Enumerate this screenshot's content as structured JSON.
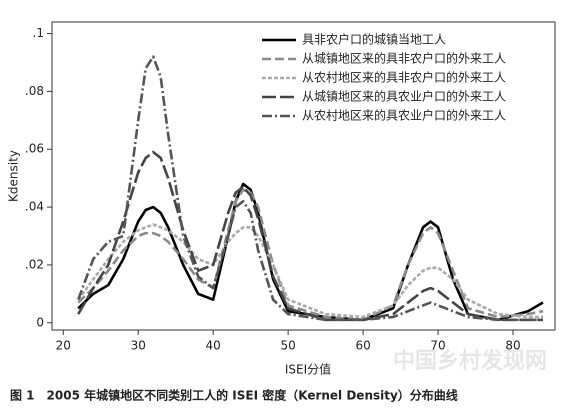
{
  "chart_data": {
    "type": "line",
    "caption": "图 1　2005 年城镇地区不同类别工人的 ISEI 密度（Kernel Density）分布曲线",
    "watermark": "中国乡村发现网",
    "xlabel": "ISEI分值",
    "ylabel": "Kdensity",
    "x": [
      22,
      24,
      26,
      28,
      30,
      31,
      32,
      33,
      34,
      36,
      38,
      40,
      42,
      43,
      44,
      45,
      46,
      48,
      50,
      55,
      60,
      64,
      66,
      68,
      69,
      70,
      72,
      74,
      78,
      82,
      84
    ],
    "series": [
      {
        "name": "具非农户口的城镇当地工人",
        "color": "#000000",
        "dash": "none",
        "values": [
          0.005,
          0.01,
          0.013,
          0.022,
          0.035,
          0.039,
          0.04,
          0.038,
          0.033,
          0.02,
          0.01,
          0.008,
          0.03,
          0.042,
          0.048,
          0.046,
          0.038,
          0.015,
          0.004,
          0.002,
          0.001,
          0.005,
          0.02,
          0.033,
          0.035,
          0.033,
          0.015,
          0.003,
          0.001,
          0.004,
          0.007
        ]
      },
      {
        "name": "从城镇地区来的具非农户口的外来工人",
        "color": "#8a8a8a",
        "dash": "9 4",
        "values": [
          0.007,
          0.012,
          0.018,
          0.025,
          0.03,
          0.031,
          0.031,
          0.03,
          0.028,
          0.022,
          0.015,
          0.012,
          0.032,
          0.042,
          0.046,
          0.045,
          0.04,
          0.02,
          0.006,
          0.002,
          0.001,
          0.006,
          0.02,
          0.031,
          0.033,
          0.031,
          0.018,
          0.005,
          0.002,
          0.003,
          0.004
        ]
      },
      {
        "name": "从农村地区来的具非农户口的外来工人",
        "color": "#aaaaaa",
        "dash": "4 2",
        "values": [
          0.008,
          0.015,
          0.022,
          0.028,
          0.032,
          0.033,
          0.034,
          0.033,
          0.032,
          0.028,
          0.022,
          0.02,
          0.028,
          0.031,
          0.033,
          0.033,
          0.03,
          0.02,
          0.008,
          0.003,
          0.002,
          0.006,
          0.013,
          0.018,
          0.019,
          0.019,
          0.015,
          0.008,
          0.003,
          0.002,
          0.002
        ]
      },
      {
        "name": "从城镇地区来的具农业户口的外来工人",
        "color": "#444444",
        "dash": "14 4",
        "values": [
          0.003,
          0.012,
          0.02,
          0.035,
          0.052,
          0.057,
          0.059,
          0.057,
          0.05,
          0.032,
          0.018,
          0.02,
          0.038,
          0.045,
          0.047,
          0.044,
          0.036,
          0.016,
          0.005,
          0.001,
          0.001,
          0.003,
          0.007,
          0.011,
          0.012,
          0.011,
          0.007,
          0.003,
          0.001,
          0.001,
          0.001
        ]
      },
      {
        "name": "从农村地区来的具农业户口的外来工人",
        "color": "#555555",
        "dash": "10 3 2 3",
        "values": [
          0.008,
          0.022,
          0.028,
          0.03,
          0.07,
          0.088,
          0.092,
          0.085,
          0.065,
          0.03,
          0.016,
          0.012,
          0.03,
          0.04,
          0.042,
          0.038,
          0.025,
          0.008,
          0.003,
          0.001,
          0.001,
          0.002,
          0.004,
          0.006,
          0.007,
          0.006,
          0.004,
          0.002,
          0.001,
          0.001,
          0.001
        ]
      }
    ],
    "xlim": [
      18.5,
      85.6
    ],
    "xticks": [
      20,
      30,
      40,
      50,
      60,
      70,
      80
    ],
    "ylim": [
      -0.0025,
      0.104
    ],
    "yticks": [
      0,
      {
        "value": 0.02,
        "label": ".02"
      },
      {
        "value": 0.04,
        "label": ".04"
      },
      {
        "value": 0.06,
        "label": ".06"
      },
      {
        "value": 0.08,
        "label": ".08"
      },
      {
        "value": 0.1,
        "label": ".1"
      }
    ],
    "legend": "upper right"
  }
}
